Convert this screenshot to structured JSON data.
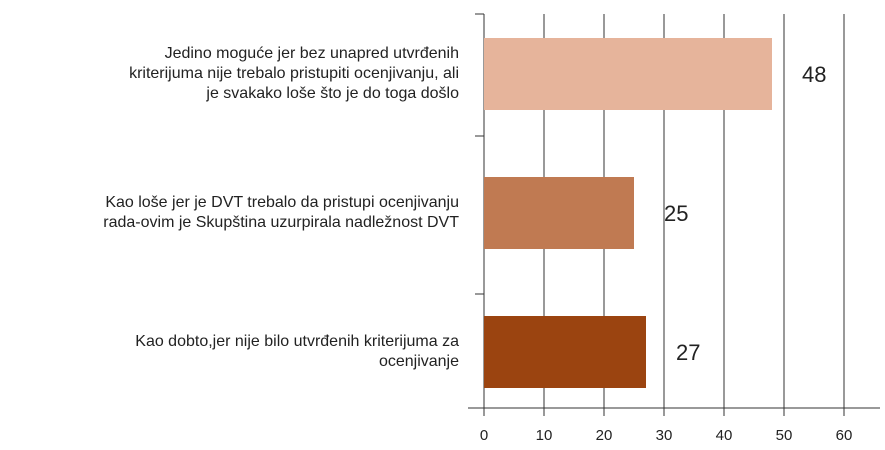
{
  "chart_data": {
    "type": "bar",
    "orientation": "horizontal",
    "categories": [
      [
        "Jedino moguće jer bez unapred utvrđenih",
        "kriterijuma nije trebalo pristupiti ocenjivanju, ali",
        "je svakako loše što je do toga došlo"
      ],
      [
        "Kao loše jer je DVT trebalo da pristupi ocenjivanju",
        "rada-ovim je Skupština uzurpirala nadležnost DVT"
      ],
      [
        "Kao dobto,jer nije bilo utvrđenih kriterijuma za",
        "ocenjivanje"
      ]
    ],
    "values": [
      48,
      25,
      27
    ],
    "colors": [
      "#e6b49b",
      "#c07a52",
      "#9b4410"
    ],
    "xlim": [
      0,
      66
    ],
    "xticks": [
      0,
      10,
      20,
      30,
      40,
      50,
      60
    ],
    "grid": true
  }
}
